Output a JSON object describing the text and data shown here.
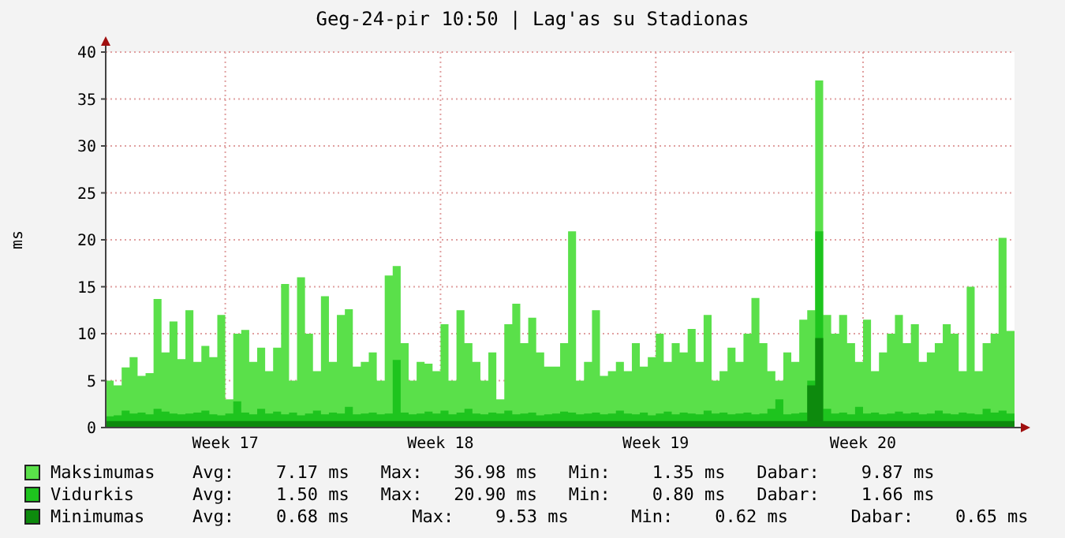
{
  "chart_data": {
    "type": "area",
    "title": "Geg-24-pir 10:50 | Lag'as su Stadionas",
    "ylabel": "ms",
    "categories": [
      null,
      null,
      null,
      null,
      null,
      null,
      null,
      null,
      null,
      null,
      null,
      null,
      null,
      null,
      null,
      "Week 17",
      null,
      null,
      null,
      null,
      null,
      null,
      null,
      null,
      null,
      null,
      null,
      null,
      null,
      null,
      null,
      null,
      null,
      null,
      null,
      null,
      null,
      null,
      null,
      null,
      null,
      null,
      "Week 18",
      null,
      null,
      null,
      null,
      null,
      null,
      null,
      null,
      null,
      null,
      null,
      null,
      null,
      null,
      null,
      null,
      null,
      null,
      null,
      null,
      null,
      null,
      null,
      null,
      null,
      null,
      "Week 19",
      null,
      null,
      null,
      null,
      null,
      null,
      null,
      null,
      null,
      null,
      null,
      null,
      null,
      null,
      null,
      null,
      null,
      null,
      null,
      null,
      null,
      null,
      null,
      null,
      null,
      "Week 20",
      null,
      null,
      null,
      null,
      null,
      null,
      null,
      null,
      null,
      null,
      null,
      null,
      null,
      null,
      null,
      null,
      null,
      null,
      null
    ],
    "series": [
      {
        "name": "Maksimumas",
        "color": "#5ae04a",
        "values": [
          5,
          4.5,
          6.4,
          7.5,
          5.5,
          5.8,
          13.7,
          8,
          11.3,
          7.3,
          12.5,
          7,
          8.7,
          7.5,
          12,
          3,
          10,
          10.4,
          7,
          8.5,
          6,
          8.5,
          15.3,
          5,
          16,
          10,
          6,
          14,
          7,
          12,
          12.6,
          6.5,
          7,
          8,
          5,
          16.2,
          17.2,
          9,
          5,
          7,
          6.8,
          6,
          11,
          5,
          12.5,
          9,
          7,
          5,
          8,
          3,
          11,
          13.2,
          9,
          11.7,
          8,
          6.5,
          6.5,
          9,
          20.9,
          5,
          7,
          12.5,
          5.5,
          6,
          7,
          6,
          9,
          6.5,
          7.5,
          10,
          7,
          9,
          8,
          10.5,
          7,
          12,
          5,
          6,
          8.5,
          7,
          10,
          13.8,
          9,
          6,
          5,
          8,
          7,
          11.5,
          12.5,
          36.98,
          12,
          10,
          12,
          9,
          7,
          11.5,
          6,
          8,
          10,
          12,
          9,
          11,
          7,
          8,
          9,
          11,
          10,
          6,
          15,
          6,
          9,
          10,
          20.2,
          10.3,
          10
        ]
      },
      {
        "name": "Vidurkis",
        "color": "#1ec41e",
        "values": [
          1.2,
          1.3,
          1.8,
          1.5,
          1.6,
          1.4,
          2.0,
          1.7,
          1.5,
          1.4,
          1.5,
          1.6,
          1.8,
          1.4,
          1.3,
          1.5,
          2.8,
          1.6,
          1.4,
          2.0,
          1.5,
          1.7,
          1.4,
          1.6,
          1.3,
          1.5,
          1.8,
          1.4,
          1.6,
          1.5,
          2.2,
          1.4,
          1.5,
          1.6,
          1.4,
          1.5,
          7.2,
          1.6,
          1.4,
          1.5,
          1.7,
          1.5,
          1.8,
          1.4,
          1.6,
          2.0,
          1.5,
          1.4,
          1.6,
          1.5,
          1.8,
          1.4,
          1.5,
          1.6,
          1.3,
          1.4,
          1.5,
          1.7,
          1.6,
          1.4,
          1.5,
          1.6,
          1.4,
          1.5,
          1.8,
          1.5,
          1.4,
          1.6,
          1.3,
          1.5,
          1.7,
          1.4,
          1.6,
          1.5,
          1.4,
          1.8,
          1.5,
          1.6,
          1.4,
          1.5,
          1.6,
          1.4,
          1.5,
          2.0,
          3.0,
          1.4,
          1.5,
          1.6,
          5,
          20.9,
          2.0,
          1.5,
          1.6,
          1.4,
          2.2,
          1.5,
          1.6,
          1.4,
          1.5,
          1.7,
          1.5,
          1.6,
          1.4,
          1.5,
          1.8,
          1.5,
          1.4,
          1.6,
          1.5,
          1.4,
          2.0,
          1.6,
          1.8,
          1.5,
          1.7
        ]
      },
      {
        "name": "Minimumas",
        "color": "#0d8a0d",
        "values": [
          0.7,
          0.7,
          0.7,
          0.7,
          0.7,
          0.7,
          0.7,
          0.7,
          0.7,
          0.7,
          0.7,
          0.7,
          0.7,
          0.7,
          0.7,
          0.7,
          0.7,
          0.7,
          0.7,
          0.7,
          0.7,
          0.7,
          0.7,
          0.7,
          0.7,
          0.7,
          0.7,
          0.7,
          0.7,
          0.7,
          0.7,
          0.7,
          0.7,
          0.7,
          0.7,
          0.7,
          0.7,
          0.7,
          0.7,
          0.7,
          0.7,
          0.7,
          0.7,
          0.7,
          0.7,
          0.7,
          0.7,
          0.7,
          0.7,
          0.7,
          0.7,
          0.7,
          0.7,
          0.7,
          0.7,
          0.7,
          0.7,
          0.7,
          0.7,
          0.7,
          0.7,
          0.7,
          0.7,
          0.7,
          0.7,
          0.7,
          0.7,
          0.7,
          0.7,
          0.7,
          0.7,
          0.7,
          0.7,
          0.7,
          0.7,
          0.7,
          0.7,
          0.7,
          0.7,
          0.7,
          0.7,
          0.7,
          0.7,
          0.7,
          0.7,
          0.7,
          0.7,
          0.7,
          4.5,
          9.53,
          0.7,
          0.7,
          0.7,
          0.7,
          0.7,
          0.7,
          0.7,
          0.7,
          0.7,
          0.7,
          0.7,
          0.7,
          0.7,
          0.7,
          0.7,
          0.7,
          0.7,
          0.7,
          0.7,
          0.7,
          0.7,
          0.7,
          0.7,
          0.7,
          0.7
        ]
      }
    ],
    "ylim": [
      0,
      40
    ],
    "yticks": [
      0,
      5,
      10,
      15,
      20,
      25,
      30,
      35,
      40
    ],
    "grid": true,
    "legend": "bottom",
    "annotations": [
      "Avg:    7.17 ms   Max:   36.98 ms   Min:    1.35 ms   Dabar:    9.87 ms",
      "Avg:    1.50 ms   Max:   20.90 ms   Min:    0.80 ms   Dabar:    1.66 ms",
      "Avg:    0.68 ms      Max:    9.53 ms      Min:    0.62 ms      Dabar:    0.65 ms"
    ]
  }
}
